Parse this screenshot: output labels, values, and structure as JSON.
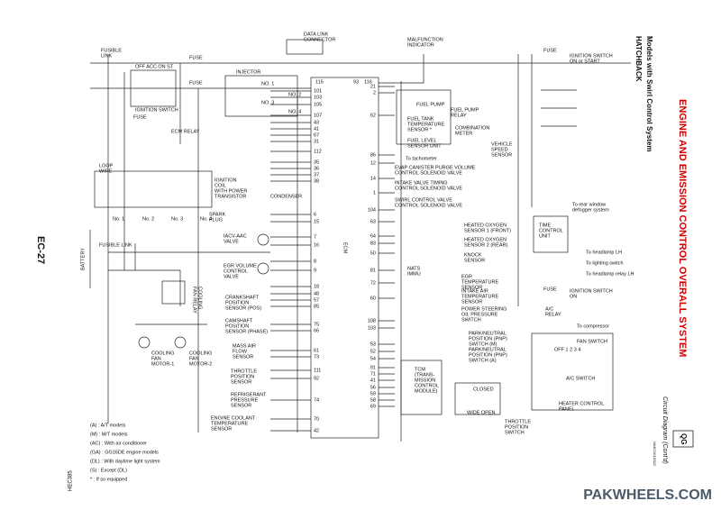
{
  "header": {
    "title": "ENGINE AND EMISSION CONTROL OVERALL SYSTEM",
    "subtitle": "Circuit Diagram (Cont'd)",
    "section": "QG",
    "model": "HATCHBACK",
    "model_sub": "Models with Swirl Control System",
    "page": "EC-27",
    "ref": "NAEC0015S02",
    "code": "HEC385",
    "watermark": "PAKWHEELS.COM"
  },
  "ecm": {
    "label": "ECM",
    "top_pins": [
      "115",
      "93",
      "116"
    ],
    "left_pins": [
      "101",
      "103",
      "105",
      "107",
      "43",
      "41",
      "67",
      "31",
      "112",
      "35",
      "36",
      "37",
      "38",
      "6",
      "15",
      "7",
      "16",
      "8",
      "9",
      "18",
      "48",
      "57",
      "85",
      "75",
      "66",
      "61",
      "73",
      "111",
      "92",
      "74",
      "70",
      "42"
    ],
    "right_pins": [
      "21",
      "2",
      "62",
      "86",
      "12",
      "14",
      "1",
      "104",
      "63",
      "64",
      "83",
      "50",
      "81",
      "72",
      "60",
      "108",
      "103",
      "53",
      "52",
      "54",
      "91",
      "71",
      "41",
      "56",
      "59",
      "58",
      "69"
    ]
  },
  "components": [
    [
      "FUSIBLE",
      "LINK"
    ],
    [
      "FUSE"
    ],
    [
      "FUSE"
    ],
    [
      "IGNITION SWITCH"
    ],
    [
      "FUSE"
    ],
    [
      "ECM RELAY"
    ],
    [
      "INJECTOR"
    ],
    [
      "NO. 1"
    ],
    [
      "NO. 2"
    ],
    [
      "NO. 3"
    ],
    [
      "NO. 4"
    ],
    [
      "LOOP",
      "WIRE"
    ],
    [
      "IGNITION",
      "COIL",
      "WITH POWER",
      "TRANSISTOR"
    ],
    [
      "CONDENSER"
    ],
    [
      "SPARK",
      "PLUG"
    ],
    [
      "No. 1"
    ],
    [
      "No. 2"
    ],
    [
      "No. 3"
    ],
    [
      "No. 4"
    ],
    [
      "IACV-AAC",
      "VALVE"
    ],
    [
      "EGR VOLUME",
      "CONTROL",
      "VALVE"
    ],
    [
      "FUSIBLE LINK"
    ],
    [
      "CRANKSHAFT",
      "POSITION",
      "SENSOR (POS)"
    ],
    [
      "CAMSHAFT",
      "POSITION",
      "SENSOR (PHASE)"
    ],
    [
      "COOLING",
      "FAN",
      "MOTOR-1"
    ],
    [
      "COOLING",
      "FAN",
      "MOTOR-2"
    ],
    [
      "MASS AIR",
      "FLOW",
      "SENSOR"
    ],
    [
      "THROTTLE",
      "POSITION",
      "SENSOR"
    ],
    [
      "REFRIGERANT",
      "PRESSURE",
      "SENSOR"
    ],
    [
      "ENGINE COOLANT",
      "TEMPERATURE",
      "SENSOR"
    ],
    [
      "DATA LINK",
      "CONNECTOR"
    ],
    [
      "MALFUNCTION",
      "INDICATOR"
    ],
    [
      "FUEL PUMP"
    ],
    [
      "FUEL PUMP",
      "RELAY"
    ],
    [
      "FUEL TANK",
      "TEMPERATURE",
      "SENSOR *"
    ],
    [
      "FUEL LEVEL",
      "SENSOR UNIT"
    ],
    [
      "COMBINATION",
      "METER"
    ],
    [
      "VEHICLE",
      "SPEED",
      "SENSOR"
    ],
    [
      "To tachometer"
    ],
    [
      "EVAP CANISTER PURGE VOLUME",
      "CONTROL SOLENOID VALVE"
    ],
    [
      "INTAKE VALVE TIMING",
      "CONTROL SOLENOID VALVE"
    ],
    [
      "SWIRL CONTROL VALVE",
      "CONTROL SOLENOID VALVE"
    ],
    [
      "HEATED OXYGEN",
      "SENSOR 1 (FRONT)"
    ],
    [
      "HEATED OXYGEN",
      "SENSOR 2 (REAR)"
    ],
    [
      "KNOCK",
      "SENSOR"
    ],
    [
      "NATS",
      "IMMU"
    ],
    [
      "EGR",
      "TEMPERATURE",
      "SENSOR"
    ],
    [
      "INTAKE AIR",
      "TEMPERATURE",
      "SENSOR"
    ],
    [
      "POWER STEERING",
      "OIL PRESSURE",
      "SWITCH"
    ],
    [
      "PARK/NEUTRAL",
      "POSITION (PNP)",
      "SWITCH (M)"
    ],
    [
      "PARK/NEUTRAL",
      "POSITION (PNP)",
      "SWITCH (A)"
    ],
    [
      "TCM",
      "(TRANS-",
      "MISSION",
      "CONTROL",
      "MODULE)"
    ],
    [
      "CLOSED"
    ],
    [
      "WIDE OPEN"
    ],
    [
      "THROTTLE",
      "POSITION",
      "SWITCH"
    ],
    [
      "FUSE"
    ],
    [
      "IGNITION SWITCH",
      "ON or START"
    ],
    [
      "To rear window",
      "defogger system"
    ],
    [
      "TIME",
      "CONTROL",
      "UNIT"
    ],
    [
      "To headlamp LH"
    ],
    [
      "To lighting switch"
    ],
    [
      "To headlamp relay LH"
    ],
    [
      "FUSE"
    ],
    [
      "IGNITION SWITCH",
      "ON"
    ],
    [
      "A/C",
      "RELAY"
    ],
    [
      "To compressor"
    ],
    [
      "FAN SWITCH"
    ],
    [
      "OFF  1  2  3  4"
    ],
    [
      "A/C SWITCH"
    ],
    [
      "HEATER CONTROL",
      "PANEL"
    ],
    [
      "OFF ACC ON ST"
    ],
    [
      "BATTERY"
    ],
    [
      "COOLING",
      "FAN RELAY"
    ]
  ],
  "legend": [
    "(A) : A/T models",
    "(M) : M/T models",
    "(AC) : With air conditioner",
    "(GA) : GG16DE engine models",
    "(DL) : With daytime light system",
    "(S) : Except (DL)",
    "* : If so equipped"
  ]
}
